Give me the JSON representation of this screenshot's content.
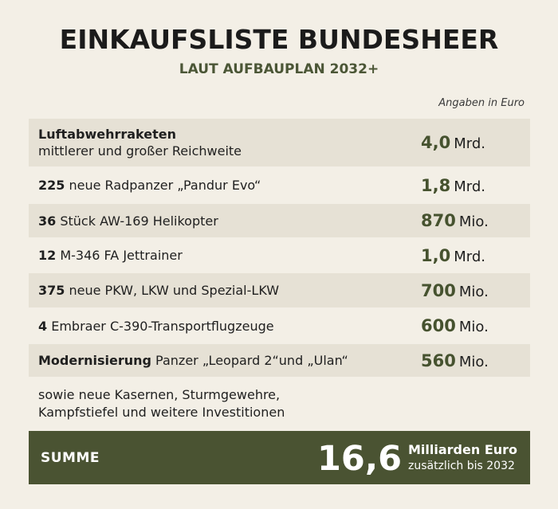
{
  "header": {
    "title": "EINKAUFSLISTE BUNDESHEER",
    "subtitle": "LAUT AUFBAUPLAN 2032+",
    "unit_note": "Angaben in Euro"
  },
  "items": [
    {
      "bold": "Luftabwehrraketen",
      "text": "",
      "line2": "mittlerer und großer Reichweite",
      "value": "4,0",
      "unit": "Mrd."
    },
    {
      "bold": "225",
      "text": " neue Radpanzer „Pandur Evo“",
      "line2": "",
      "value": "1,8",
      "unit": "Mrd."
    },
    {
      "bold": "36",
      "text": " Stück AW-169 Helikopter",
      "line2": "",
      "value": "870",
      "unit": "Mio."
    },
    {
      "bold": "12",
      "text": " M-346 FA Jettrainer",
      "line2": "",
      "value": "1,0",
      "unit": "Mrd."
    },
    {
      "bold": "375",
      "text": " neue PKW, LKW und Spezial-LKW",
      "line2": "",
      "value": "700",
      "unit": "Mio."
    },
    {
      "bold": "4",
      "text": " Embraer C-390-Transportflugzeuge",
      "line2": "",
      "value": "600",
      "unit": "Mio."
    },
    {
      "bold": "Modernisierung",
      "text": " Panzer „Leopard 2“und „Ulan“",
      "line2": "",
      "value": "560",
      "unit": "Mio."
    }
  ],
  "note": {
    "line1": "sowie neue Kasernen, Sturmgewehre,",
    "line2": "Kampfstiefel und weitere Investitionen"
  },
  "sum": {
    "label": "SUMME",
    "value": "16,6",
    "unit": "Milliarden Euro",
    "sub": "zusätzlich bis 2032"
  },
  "colors": {
    "background": "#f3efe6",
    "row_shade": "#e6e1d5",
    "accent_green": "#46522f",
    "sum_bar": "#4a5332"
  }
}
